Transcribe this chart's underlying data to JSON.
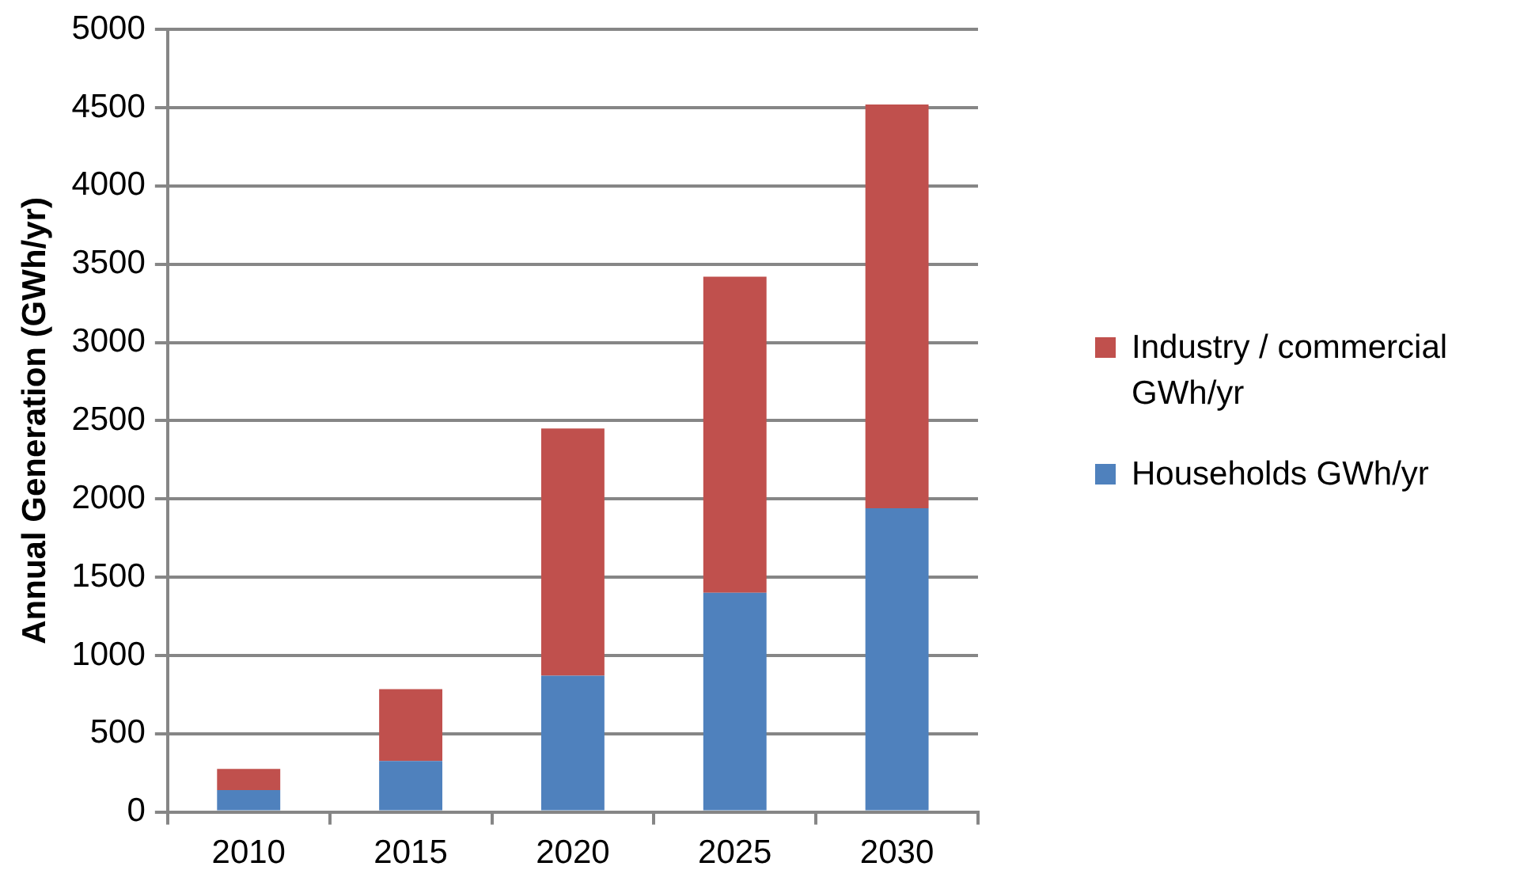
{
  "chart_data": {
    "type": "bar",
    "stacked": true,
    "ylabel": "Annual Generation (GWh/yr)",
    "categories": [
      "2010",
      "2015",
      "2020",
      "2025",
      "2030"
    ],
    "series": [
      {
        "name": "Households GWh/yr",
        "color": "#4f81bd",
        "values": [
          140,
          325,
          870,
          1400,
          1940
        ]
      },
      {
        "name": "Industry / commercial GWh/yr",
        "color": "#c0504d",
        "values": [
          135,
          460,
          1580,
          2020,
          2580
        ]
      }
    ],
    "ylim": [
      0,
      5000
    ],
    "yticks": [
      0,
      500,
      1000,
      1500,
      2000,
      2500,
      3000,
      3500,
      4000,
      4500,
      5000
    ],
    "grid": "y",
    "legend": "right"
  }
}
